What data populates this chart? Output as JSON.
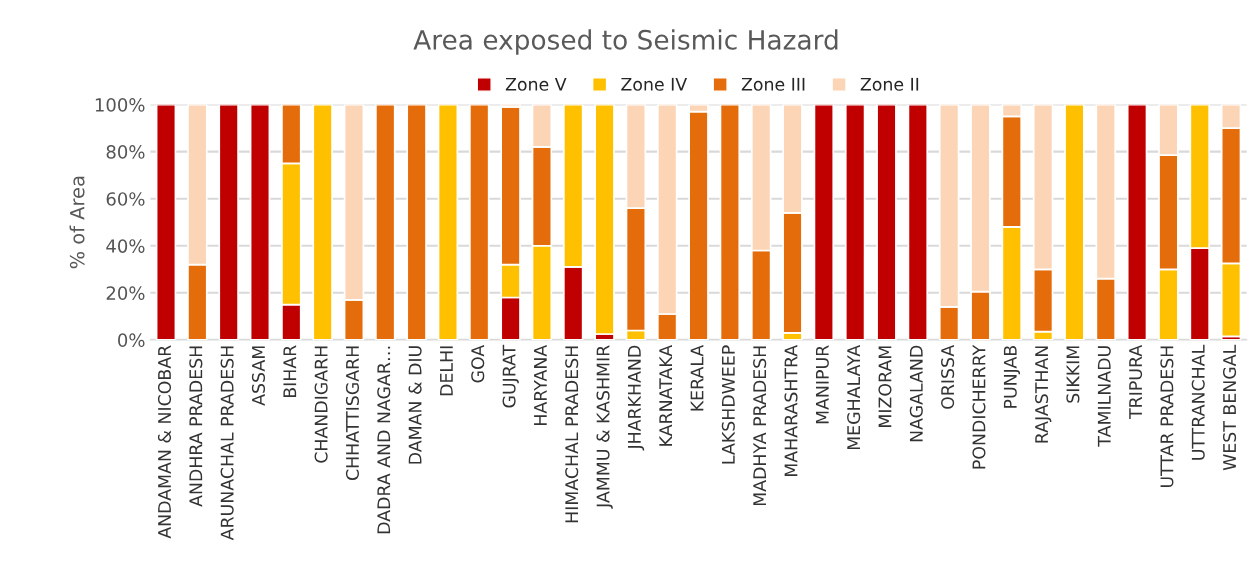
{
  "chart_data": {
    "type": "bar",
    "stacked": true,
    "title": "Area exposed to Seismic Hazard",
    "ylabel": "% of Area",
    "categories": [
      "ANDAMAN & NICOBAR",
      "ANDHRA PRADESH",
      "ARUNACHAL PRADESH",
      "ASSAM",
      "BIHAR",
      "CHANDIGARH",
      "CHHATTISGARH",
      "DADRA AND NAGAR…",
      "DAMAN & DIU",
      "DELHI",
      "GOA",
      "GUJRAT",
      "HARYANA",
      "HIMACHAL PRADESH",
      "JAMMU & KASHMIR",
      "JHARKHAND",
      "KARNATAKA",
      "KERALA",
      "LAKSHDWEEP",
      "MADHYA PRADESH",
      "MAHARASHTRA",
      "MANIPUR",
      "MEGHALAYA",
      "MIZORAM",
      "NAGALAND",
      "ORISSA",
      "PONDICHERRY",
      "PUNJAB",
      "RAJASTHAN",
      "SIKKIM",
      "TAMILNADU",
      "TRIPURA",
      "UTTAR PRADESH",
      "UTTRANCHAL",
      "WEST BENGAL"
    ],
    "series": [
      {
        "name": "Zone V",
        "color": "#c00000",
        "values": [
          100,
          null,
          100,
          100,
          15,
          null,
          null,
          null,
          null,
          null,
          null,
          18,
          null,
          31,
          2.5,
          null,
          null,
          null,
          null,
          null,
          null,
          100,
          100,
          100,
          100,
          null,
          null,
          null,
          null,
          null,
          null,
          100,
          null,
          39,
          1.5
        ]
      },
      {
        "name": "Zone IV",
        "color": "#ffc000",
        "values": [
          null,
          null,
          null,
          null,
          60,
          100,
          null,
          null,
          null,
          100,
          null,
          14,
          40,
          69,
          97.5,
          4,
          null,
          null,
          null,
          null,
          3,
          null,
          null,
          null,
          null,
          null,
          null,
          48,
          3.5,
          100,
          null,
          null,
          30,
          61,
          31
        ]
      },
      {
        "name": "Zone III",
        "color": "#e46c0a",
        "values": [
          null,
          32,
          null,
          null,
          25,
          null,
          17,
          100,
          100,
          null,
          100,
          67,
          42,
          null,
          null,
          52,
          11,
          97,
          100,
          38,
          51,
          null,
          null,
          null,
          null,
          14,
          20.5,
          47,
          26.5,
          null,
          26,
          null,
          48.5,
          null,
          57.5
        ]
      },
      {
        "name": "Zone II",
        "color": "#fbd5b5",
        "values": [
          null,
          68,
          null,
          null,
          null,
          null,
          83,
          null,
          null,
          null,
          null,
          1,
          18,
          null,
          null,
          44,
          89,
          3,
          null,
          62,
          46,
          null,
          null,
          null,
          null,
          86,
          79.5,
          5,
          70,
          null,
          74,
          null,
          21.5,
          null,
          10
        ]
      }
    ],
    "ylim": [
      0,
      100
    ],
    "yticks": [
      {
        "value": 0,
        "label": "0%"
      },
      {
        "value": 20,
        "label": "20%"
      },
      {
        "value": 40,
        "label": "40%"
      },
      {
        "value": 60,
        "label": "60%"
      },
      {
        "value": 80,
        "label": "80%"
      },
      {
        "value": 100,
        "label": "100%"
      }
    ],
    "grid": "y",
    "legend": "top"
  }
}
